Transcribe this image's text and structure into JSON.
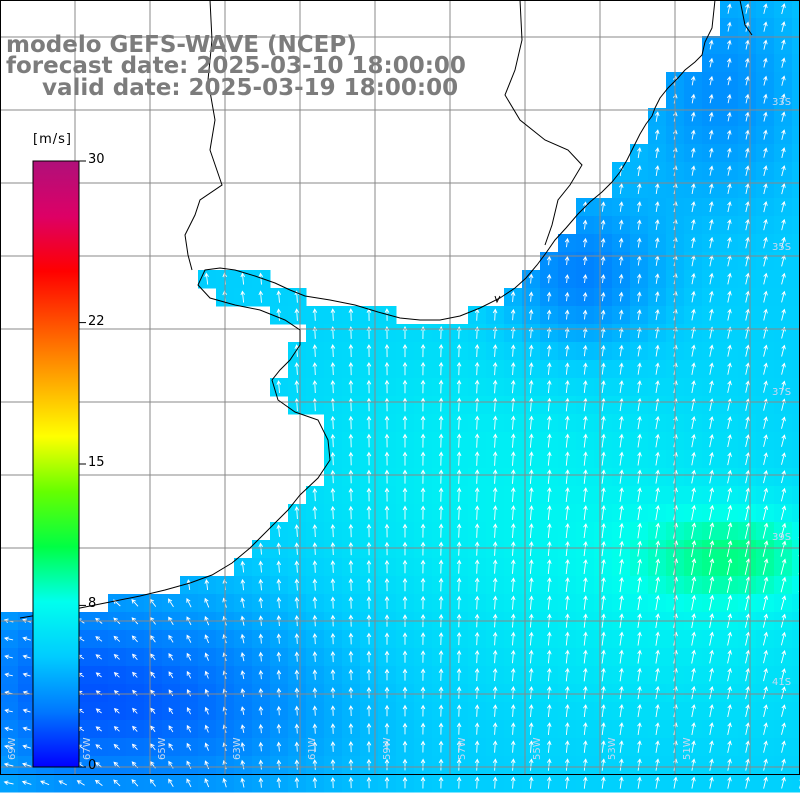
{
  "title": {
    "line1": "modelo GEFS-WAVE (NCEP)",
    "line2": "forecast date: 2025-03-10 18:00:00",
    "line3": "valid date: 2025-03-19 18:00:00"
  },
  "legend": {
    "unit": "[m/s]",
    "min": 0,
    "max": 30,
    "ticks": [
      {
        "value": 30,
        "label": "30"
      },
      {
        "value": 22,
        "label": "22"
      },
      {
        "value": 15,
        "label": "15"
      },
      {
        "value": 8,
        "label": "8"
      },
      {
        "value": 0,
        "label": "0"
      }
    ],
    "colors": [
      "#0000ff",
      "#0077ff",
      "#00ccff",
      "#00ffee",
      "#00ff44",
      "#66ff00",
      "#ffff00",
      "#ffaa00",
      "#ff5500",
      "#ff0000",
      "#dd0066",
      "#b0107a"
    ]
  },
  "map": {
    "background_color": "#ffffff",
    "grid_color": "#888888",
    "coastline_color": "#000000",
    "arrow_color": "#ffffff",
    "longitude_labels": [
      "69W",
      "67W",
      "65W",
      "63W",
      "61W",
      "59W",
      "57W",
      "55W",
      "53W",
      "51W"
    ],
    "latitude_labels": [
      "33S",
      "35S",
      "37S",
      "39S",
      "41S"
    ]
  }
}
